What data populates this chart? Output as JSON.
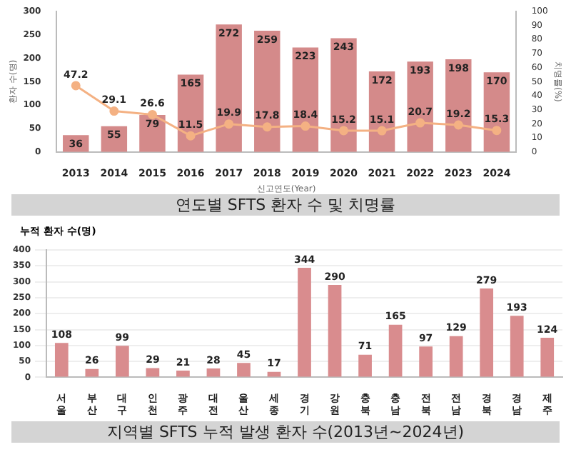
{
  "chart_data": [
    {
      "type": "bar",
      "title": "연도별 SFTS 환자 수 및 치명률",
      "xlabel": "신고연도(Year)",
      "ylabel": "환자 수(명)",
      "y2label": "치명률(%)",
      "categories": [
        "2013",
        "2014",
        "2015",
        "2016",
        "2017",
        "2018",
        "2019",
        "2020",
        "2021",
        "2022",
        "2023",
        "2024"
      ],
      "series": [
        {
          "type": "bar",
          "color": "#d48a8a",
          "values": [
            36,
            55,
            79,
            165,
            272,
            259,
            223,
            243,
            172,
            193,
            198,
            170
          ]
        },
        {
          "type": "line",
          "axis": "y2",
          "color": "#f4b183",
          "values": [
            47.2,
            29.1,
            26.6,
            11.5,
            19.9,
            17.8,
            18.4,
            15.2,
            15.1,
            20.7,
            19.2,
            15.3
          ]
        }
      ],
      "ylim": [
        0,
        300
      ],
      "yticks": [
        0,
        50,
        100,
        150,
        200,
        250,
        300
      ],
      "y2lim": [
        0,
        100
      ],
      "y2ticks": [
        0,
        10,
        20,
        30,
        40,
        50,
        60,
        70,
        80,
        90,
        100
      ],
      "data_labels": true,
      "marker": "circle",
      "grid": false,
      "legend": false
    },
    {
      "type": "bar",
      "title": "지역별 SFTS 누적 발생 환자 수(2013년~2024년)",
      "ylabel": "누적 환자 수(명)",
      "categories": [
        "서울",
        "부산",
        "대구",
        "인천",
        "광주",
        "대전",
        "울산",
        "세종",
        "경기",
        "강원",
        "충북",
        "충남",
        "전북",
        "전남",
        "경북",
        "경남",
        "제주"
      ],
      "series": [
        {
          "color": "#d98c8e",
          "values": [
            108,
            26,
            99,
            29,
            21,
            28,
            45,
            17,
            344,
            290,
            71,
            165,
            97,
            129,
            279,
            193,
            124
          ]
        }
      ],
      "ylim": [
        0,
        400
      ],
      "yticks": [
        0,
        50,
        100,
        150,
        200,
        250,
        300,
        350,
        400
      ],
      "data_labels": true,
      "grid": "y",
      "legend": false
    }
  ]
}
